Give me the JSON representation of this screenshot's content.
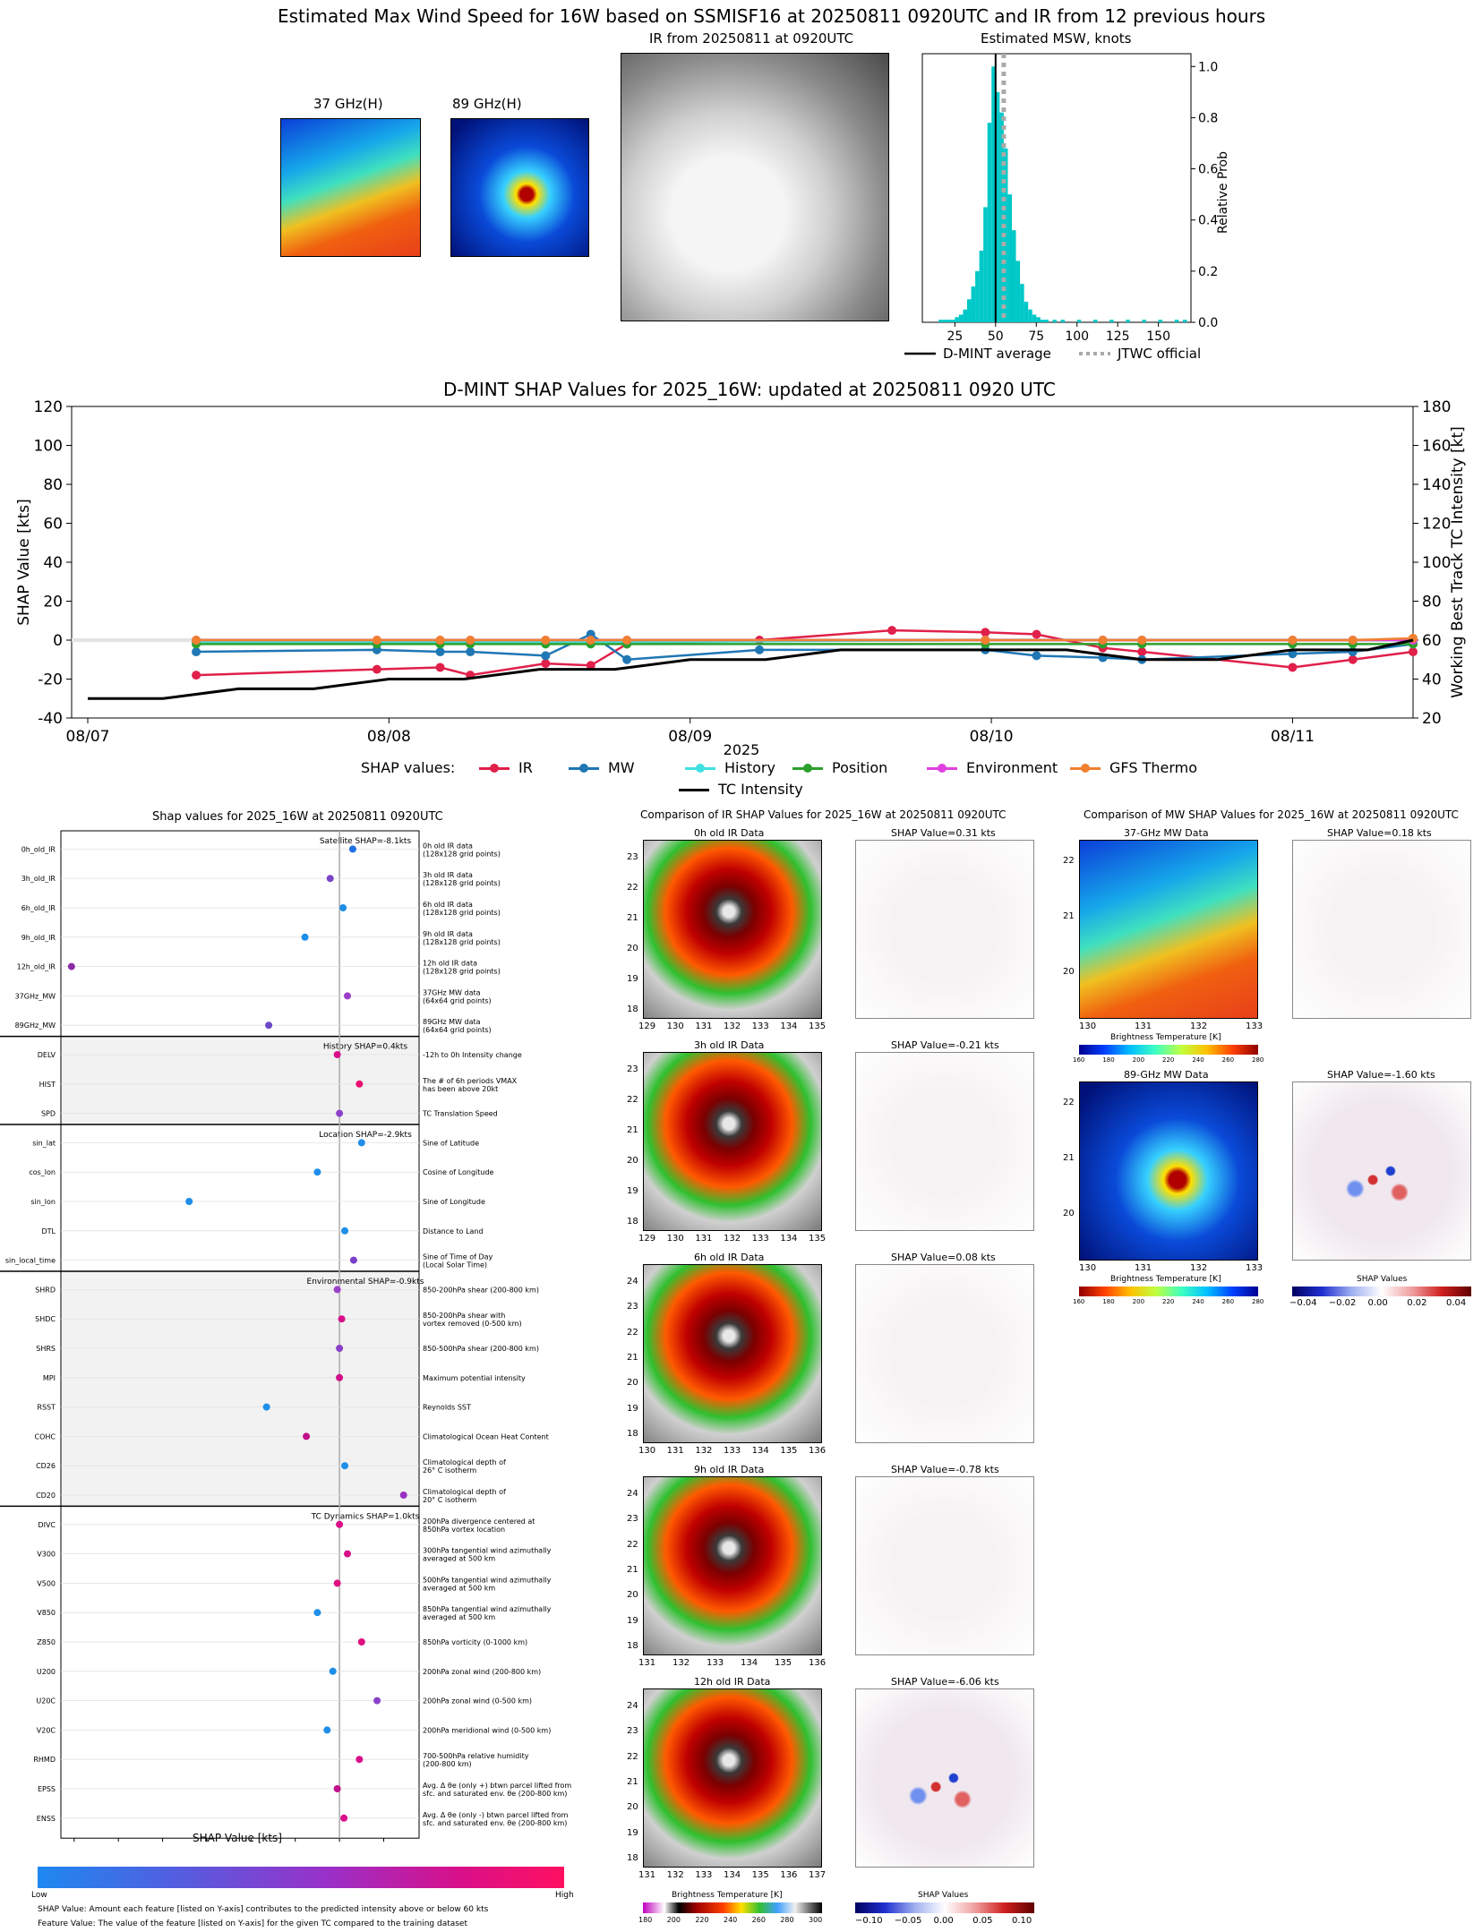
{
  "header": {
    "main_title": "Estimated Max Wind Speed for 16W based on SSMISF16 at 20250811 0920UTC and IR from 12 previous hours",
    "panel_37": "37 GHz(H)",
    "panel_89": "89 GHz(H)",
    "panel_ir": "IR from 20250811 at 0920UTC",
    "panel_msw": "Estimated MSW, knots",
    "msw_ylabel": "Relative Prob",
    "msw_legend_avg": "D-MINT average",
    "msw_legend_jtwc": "JTWC official"
  },
  "timeseries": {
    "title": "D-MINT SHAP Values for 2025_16W: updated at 20250811 0920 UTC",
    "ylabel_left": "SHAP Value [kts]",
    "ylabel_right": "Working Best Track TC Intensity [kt]",
    "xlabel": "2025",
    "legend_prefix": "SHAP values:",
    "legend_tc": "TC Intensity"
  },
  "shap_panel": {
    "title": "Shap values for 2025_16W at 20250811 0920UTC",
    "xlabel": "SHAP Value [kts]",
    "colorbar_low": "Low",
    "colorbar_high": "High",
    "footnote1": "SHAP Value: Amount each feature [listed on Y-axis] contributes to the predicted intensity above or below 60 kts",
    "footnote2": "Feature Value: The value of the feature [listed on Y-axis] for the given TC compared to the training dataset",
    "groups": [
      {
        "label": "Satellite SHAP=-8.1kts"
      },
      {
        "label": "History SHAP=0.4kts"
      },
      {
        "label": "Location SHAP=-2.9kts"
      },
      {
        "label": "Environmental SHAP=-0.9kts"
      },
      {
        "label": "TC Dynamics SHAP=1.0kts"
      }
    ],
    "features": [
      {
        "name": "0h_old_IR",
        "desc1": "0h old IR data",
        "desc2": "(128x128 grid points)",
        "value": 0.3,
        "color": "#1e6fe0"
      },
      {
        "name": "3h_old_IR",
        "desc1": "3h old IR data",
        "desc2": "(128x128 grid points)",
        "value": -0.21,
        "color": "#7a44c8"
      },
      {
        "name": "6h_old_IR",
        "desc1": "6h old IR data",
        "desc2": "(128x128 grid points)",
        "value": 0.08,
        "color": "#1e8ee8"
      },
      {
        "name": "9h_old_IR",
        "desc1": "9h old IR data",
        "desc2": "(128x128 grid points)",
        "value": -0.78,
        "color": "#1e8ee8"
      },
      {
        "name": "12h_old_IR",
        "desc1": "12h old IR data",
        "desc2": "(128x128 grid points)",
        "value": -6.06,
        "color": "#8a2ca8"
      },
      {
        "name": "37GHz_MW",
        "desc1": "37GHz MW data",
        "desc2": "(64x64 grid points)",
        "value": 0.18,
        "color": "#9a3cc8"
      },
      {
        "name": "89GHz_MW",
        "desc1": "89GHz MW data",
        "desc2": "(64x64 grid points)",
        "value": -1.6,
        "color": "#6a48c8"
      },
      {
        "name": "DELV",
        "desc1": "-12h to 0h Intensity change",
        "desc2": "",
        "value": -0.05,
        "color": "#d8108a"
      },
      {
        "name": "HIST",
        "desc1": "The # of 6h periods VMAX",
        "desc2": "has been above 20kt",
        "value": 0.45,
        "color": "#e81070"
      },
      {
        "name": "SPD",
        "desc1": "TC Translation Speed",
        "desc2": "",
        "value": 0.0,
        "color": "#8a40c8"
      },
      {
        "name": "sin_lat",
        "desc1": "Sine of Latitude",
        "desc2": "",
        "value": 0.5,
        "color": "#1e8ee8"
      },
      {
        "name": "cos_lon",
        "desc1": "Cosine of Longitude",
        "desc2": "",
        "value": -0.5,
        "color": "#1e8ee8"
      },
      {
        "name": "sin_lon",
        "desc1": "Sine of Longitude",
        "desc2": "",
        "value": -3.4,
        "color": "#1e8ee8"
      },
      {
        "name": "DTL",
        "desc1": "Distance to Land",
        "desc2": "",
        "value": 0.12,
        "color": "#1e8ee8"
      },
      {
        "name": "sin_local_time",
        "desc1": "Sine of Time of Day",
        "desc2": "(Local Solar Time)",
        "value": 0.32,
        "color": "#7a40c8"
      },
      {
        "name": "SHRD",
        "desc1": "850-200hPa shear (200-800 km)",
        "desc2": "",
        "value": -0.05,
        "color": "#9a40c8"
      },
      {
        "name": "SHDC",
        "desc1": "850-200hPa shear with",
        "desc2": "vortex removed (0-500 km)",
        "value": 0.05,
        "color": "#d8108a"
      },
      {
        "name": "SHRS",
        "desc1": "850-500hPa shear (200-800 km)",
        "desc2": "",
        "value": 0.0,
        "color": "#8a40c8"
      },
      {
        "name": "MPI",
        "desc1": "Maximum potential intensity",
        "desc2": "",
        "value": 0.0,
        "color": "#d0108a"
      },
      {
        "name": "RSST",
        "desc1": "Reynolds SST",
        "desc2": "",
        "value": -1.65,
        "color": "#1e8ee8"
      },
      {
        "name": "COHC",
        "desc1": "Climatological Ocean Heat Content",
        "desc2": "",
        "value": -0.75,
        "color": "#c0108a"
      },
      {
        "name": "CD26",
        "desc1": "Climatological depth of",
        "desc2": "26° C isotherm",
        "value": 0.12,
        "color": "#1e8ee8"
      },
      {
        "name": "CD20",
        "desc1": "Climatological depth of",
        "desc2": "20° C isotherm",
        "value": 1.45,
        "color": "#9a30c0"
      },
      {
        "name": "DIVC",
        "desc1": "200hPa divergence centered at",
        "desc2": "850hPa vortex location",
        "value": 0.0,
        "color": "#d8108a"
      },
      {
        "name": "V300",
        "desc1": "300hPa tangential wind azimuthally",
        "desc2": "averaged at 500 km",
        "value": 0.18,
        "color": "#d8108a"
      },
      {
        "name": "V500",
        "desc1": "500hPa tangential wind azimuthally",
        "desc2": "averaged at 500 km",
        "value": -0.05,
        "color": "#e01080"
      },
      {
        "name": "V850",
        "desc1": "850hPa tangential wind azimuthally",
        "desc2": "averaged at 500 km",
        "value": -0.5,
        "color": "#1e8ee8"
      },
      {
        "name": "Z850",
        "desc1": "850hPa vorticity (0-1000 km)",
        "desc2": "",
        "value": 0.5,
        "color": "#e01080"
      },
      {
        "name": "U200",
        "desc1": "200hPa zonal wind (200-800 km)",
        "desc2": "",
        "value": -0.15,
        "color": "#1e8ee8"
      },
      {
        "name": "U20C",
        "desc1": "200hPa zonal wind (0-500 km)",
        "desc2": "",
        "value": 0.85,
        "color": "#8a40c8"
      },
      {
        "name": "V20C",
        "desc1": "200hPa meridional wind (0-500 km)",
        "desc2": "",
        "value": -0.28,
        "color": "#1e8ee8"
      },
      {
        "name": "RHMD",
        "desc1": "700-500hPa relative humidity",
        "desc2": "(200-800 km)",
        "value": 0.45,
        "color": "#d8108a"
      },
      {
        "name": "EPSS",
        "desc1": "Avg. Δ θe (only +) btwn parcel lifted from",
        "desc2": "sfc. and saturated env. θe (200-800 km)",
        "value": -0.05,
        "color": "#c0108a"
      },
      {
        "name": "ENSS",
        "desc1": "Avg. Δ θe (only -) btwn parcel lifted from",
        "desc2": "sfc. and saturated env. θe (200-800 km)",
        "value": 0.1,
        "color": "#d8108a"
      }
    ]
  },
  "ir_compare": {
    "title": "Comparison of IR SHAP Values for 2025_16W at 20250811 0920UTC",
    "rows": [
      {
        "left": "0h old IR Data",
        "right": "SHAP Value=0.31 kts",
        "yticks": [
          "23",
          "22",
          "21",
          "20",
          "19",
          "18"
        ],
        "xticks": [
          "129",
          "130",
          "131",
          "132",
          "133",
          "134",
          "135"
        ]
      },
      {
        "left": "3h old IR Data",
        "right": "SHAP Value=-0.21 kts",
        "yticks": [
          "23",
          "22",
          "21",
          "20",
          "19",
          "18"
        ],
        "xticks": [
          "129",
          "130",
          "131",
          "132",
          "133",
          "134",
          "135"
        ]
      },
      {
        "left": "6h old IR Data",
        "right": "SHAP Value=0.08 kts",
        "yticks": [
          "24",
          "23",
          "22",
          "21",
          "20",
          "19",
          "18"
        ],
        "xticks": [
          "130",
          "131",
          "132",
          "133",
          "134",
          "135",
          "136"
        ]
      },
      {
        "left": "9h old IR Data",
        "right": "SHAP Value=-0.78 kts",
        "yticks": [
          "24",
          "23",
          "22",
          "21",
          "20",
          "19",
          "18"
        ],
        "xticks": [
          "131",
          "132",
          "133",
          "134",
          "135",
          "136"
        ]
      },
      {
        "left": "12h old IR Data",
        "right": "SHAP Value=-6.06 kts",
        "yticks": [
          "24",
          "23",
          "22",
          "21",
          "20",
          "19",
          "18"
        ],
        "xticks": [
          "131",
          "132",
          "133",
          "134",
          "135",
          "136",
          "137"
        ]
      }
    ],
    "cbar_left_label": "Brightness Temperature [K]",
    "cbar_left_ticks": [
      "180",
      "200",
      "220",
      "240",
      "260",
      "280",
      "300"
    ],
    "cbar_right_label": "SHAP Values",
    "cbar_right_ticks": [
      "−0.10",
      "−0.05",
      "0.00",
      "0.05",
      "0.10"
    ]
  },
  "mw_compare": {
    "title": "Comparison of MW SHAP Values for 2025_16W at 20250811 0920UTC",
    "rows": [
      {
        "left": "37-GHz MW Data",
        "right": "SHAP Value=0.18 kts",
        "yticks": [
          "22",
          "21",
          "20"
        ],
        "xticks": [
          "130",
          "131",
          "132",
          "133"
        ]
      },
      {
        "left": "89-GHz MW Data",
        "right": "SHAP Value=-1.60 kts",
        "yticks": [
          "22",
          "21",
          "20"
        ],
        "xticks": [
          "130",
          "131",
          "132",
          "133"
        ]
      }
    ],
    "cbar_bt_label": "Brightness Temperature [K]",
    "cbar_bt_ticks": [
      "160",
      "180",
      "200",
      "220",
      "240",
      "260",
      "280"
    ],
    "cbar_shap_label": "SHAP Values",
    "cbar_shap_ticks": [
      "−0.04",
      "−0.02",
      "0.00",
      "0.02",
      "0.04"
    ]
  },
  "chart_data": [
    {
      "type": "bar",
      "title": "Estimated MSW, knots",
      "ylabel": "Relative Prob",
      "xlim": [
        5,
        170
      ],
      "ylim": [
        0,
        1.05
      ],
      "xticks": [
        25,
        50,
        75,
        100,
        125,
        150
      ],
      "yticks": [
        0.0,
        0.2,
        0.4,
        0.6,
        0.8,
        1.0
      ],
      "bin_width": 2.5,
      "bins_x": [
        15,
        17.5,
        20,
        22.5,
        25,
        27.5,
        30,
        32.5,
        35,
        37.5,
        40,
        42.5,
        45,
        47.5,
        50,
        52.5,
        55,
        57.5,
        60,
        62.5,
        65,
        67.5,
        70,
        72.5,
        75,
        77.5,
        80,
        85,
        90,
        100,
        110,
        120,
        130,
        140,
        150,
        160,
        165
      ],
      "bins_y": [
        0.01,
        0.01,
        0.01,
        0.01,
        0.02,
        0.03,
        0.05,
        0.09,
        0.14,
        0.2,
        0.28,
        0.45,
        0.78,
        1.0,
        0.9,
        0.82,
        0.68,
        0.5,
        0.36,
        0.24,
        0.15,
        0.08,
        0.05,
        0.03,
        0.02,
        0.01,
        0.01,
        0.01,
        0.01,
        0.01,
        0.01,
        0.01,
        0.01,
        0.01,
        0.01,
        0.01,
        0.01
      ],
      "dmint_average": 50,
      "jtwc_official": 55,
      "series": [
        {
          "name": "D-MINT average"
        },
        {
          "name": "JTWC official"
        }
      ]
    },
    {
      "type": "line",
      "title": "D-MINT SHAP Values for 2025_16W: updated at 20250811 0920 UTC",
      "xlabel": "2025",
      "ylabel": "SHAP Value [kts]",
      "ylabel_right": "Working Best Track TC Intensity [kt]",
      "ylim": [
        -40,
        120
      ],
      "ylim_right": [
        20,
        180
      ],
      "xticks": [
        "08/07",
        "08/08",
        "08/09",
        "08/10",
        "08/11"
      ],
      "yticks": [
        -40,
        -20,
        0,
        20,
        40,
        60,
        80,
        100,
        120
      ],
      "yticks_right": [
        20,
        40,
        60,
        80,
        100,
        120,
        140,
        160,
        180
      ],
      "x_days": [
        0.0,
        4.4
      ],
      "series": [
        {
          "name": "IR",
          "color": "#e0204a",
          "x": [
            0.36,
            0.96,
            1.17,
            1.27,
            1.52,
            1.67,
            1.79,
            2.23,
            2.67,
            2.98,
            3.15,
            3.37,
            3.5,
            4.0,
            4.2,
            4.4
          ],
          "y": [
            -18,
            -15,
            -14,
            -18,
            -12,
            -13,
            -2,
            0,
            5,
            4,
            3,
            -4,
            -6,
            -14,
            -10,
            -6
          ]
        },
        {
          "name": "MW",
          "color": "#1f77b4",
          "x": [
            0.36,
            0.96,
            1.17,
            1.27,
            1.52,
            1.67,
            1.79,
            2.23,
            2.98,
            3.15,
            3.37,
            3.5,
            4.0,
            4.2,
            4.4
          ],
          "y": [
            -6,
            -5,
            -6,
            -6,
            -8,
            3,
            -10,
            -5,
            -5,
            -8,
            -9,
            -10,
            -7,
            -6,
            -2
          ]
        },
        {
          "name": "History",
          "color": "#40e0e0",
          "x": [
            0.36,
            0.96,
            1.17,
            1.27,
            1.52,
            1.67,
            1.79,
            2.98,
            3.37,
            3.5,
            4.0,
            4.2,
            4.4
          ],
          "y": [
            -1,
            -1,
            -1,
            -1,
            -1,
            -1,
            -1,
            0,
            0,
            0,
            0,
            0,
            0
          ]
        },
        {
          "name": "Position",
          "color": "#2ca02c",
          "x": [
            0.36,
            0.96,
            1.17,
            1.27,
            1.52,
            1.67,
            1.79,
            2.98,
            3.37,
            3.5,
            4.0,
            4.2,
            4.4
          ],
          "y": [
            -2,
            -2,
            -2,
            -2,
            -2,
            -2,
            -2,
            -2,
            -2,
            -2,
            -2,
            -2,
            -2
          ]
        },
        {
          "name": "Environment",
          "color": "#e040e0",
          "x": [
            0.36,
            0.96,
            1.17,
            1.27,
            1.52,
            1.67,
            1.79,
            2.98,
            3.37,
            3.5,
            4.0,
            4.2,
            4.4
          ],
          "y": [
            0,
            0,
            0,
            0,
            0,
            0,
            0,
            0,
            0,
            0,
            0,
            0,
            0
          ]
        },
        {
          "name": "GFS Thermo",
          "color": "#f08030",
          "x": [
            0.36,
            0.96,
            1.17,
            1.27,
            1.52,
            1.67,
            1.79,
            2.98,
            3.37,
            3.5,
            4.0,
            4.2,
            4.4
          ],
          "y": [
            0,
            0,
            0,
            0,
            0,
            0,
            0,
            0,
            0,
            0,
            0,
            0,
            1
          ]
        }
      ],
      "tc_intensity": {
        "name": "TC Intensity",
        "x": [
          0.0,
          0.25,
          0.5,
          0.75,
          1.0,
          1.25,
          1.5,
          1.75,
          2.0,
          2.25,
          2.5,
          2.75,
          3.0,
          3.25,
          3.5,
          3.75,
          4.0,
          4.25,
          4.4
        ],
        "y": [
          30,
          30,
          35,
          35,
          40,
          40,
          45,
          45,
          50,
          50,
          55,
          55,
          55,
          55,
          50,
          50,
          55,
          55,
          60
        ]
      }
    },
    {
      "type": "scatter",
      "title": "Shap values for 2025_16W at 20250811 0920UTC",
      "xlabel": "SHAP Value [kts]",
      "xlim": [
        -6.3,
        1.8
      ],
      "xticks": [
        -6,
        -5,
        -4,
        -3,
        -2,
        -1,
        0,
        1
      ]
    }
  ]
}
